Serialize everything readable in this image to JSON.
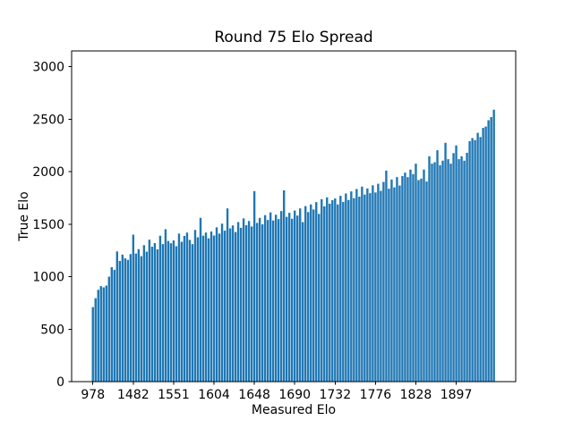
{
  "chart_data": {
    "type": "bar",
    "title": "Round 75 Elo Spread",
    "xlabel": "Measured Elo",
    "ylabel": "True Elo",
    "bar_color": "#1f77b4",
    "text_color": "#000000",
    "background_color": "#ffffff",
    "grid": false,
    "legend": null,
    "n_bars": 150,
    "ylim": [
      0,
      3150
    ],
    "yticks": [
      0,
      500,
      1000,
      1500,
      2000,
      2500,
      3000
    ],
    "xticks": [
      {
        "index": 0,
        "label": "978"
      },
      {
        "index": 15,
        "label": "1482"
      },
      {
        "index": 30,
        "label": "1551"
      },
      {
        "index": 45,
        "label": "1604"
      },
      {
        "index": 60,
        "label": "1648"
      },
      {
        "index": 75,
        "label": "1690"
      },
      {
        "index": 90,
        "label": "1732"
      },
      {
        "index": 105,
        "label": "1776"
      },
      {
        "index": 120,
        "label": "1828"
      },
      {
        "index": 135,
        "label": "1897"
      }
    ],
    "values": [
      710,
      795,
      875,
      910,
      898,
      915,
      1000,
      1090,
      1065,
      1240,
      1150,
      1210,
      1175,
      1160,
      1215,
      1400,
      1220,
      1262,
      1195,
      1300,
      1238,
      1352,
      1285,
      1320,
      1260,
      1390,
      1310,
      1452,
      1340,
      1318,
      1345,
      1290,
      1410,
      1332,
      1388,
      1420,
      1350,
      1310,
      1445,
      1375,
      1560,
      1390,
      1420,
      1365,
      1430,
      1392,
      1470,
      1410,
      1505,
      1438,
      1650,
      1460,
      1488,
      1425,
      1520,
      1465,
      1555,
      1490,
      1530,
      1478,
      1815,
      1512,
      1560,
      1498,
      1586,
      1540,
      1612,
      1535,
      1590,
      1548,
      1625,
      1822,
      1570,
      1608,
      1552,
      1630,
      1582,
      1650,
      1520,
      1672,
      1615,
      1688,
      1640,
      1710,
      1598,
      1738,
      1670,
      1755,
      1695,
      1728,
      1745,
      1688,
      1770,
      1712,
      1792,
      1730,
      1812,
      1748,
      1835,
      1762,
      1858,
      1782,
      1840,
      1795,
      1870,
      1802,
      1885,
      1818,
      1902,
      2010,
      1838,
      1925,
      1850,
      1948,
      1868,
      1958,
      1991,
      1948,
      2020,
      1977,
      2076,
      1920,
      1934,
      2020,
      1906,
      2147,
      2076,
      2090,
      2204,
      2062,
      2105,
      2275,
      2119,
      2076,
      2177,
      2250,
      2119,
      2147,
      2105,
      2180,
      2290,
      2320,
      2300,
      2370,
      2330,
      2417,
      2430,
      2490,
      2520,
      2590
    ]
  }
}
